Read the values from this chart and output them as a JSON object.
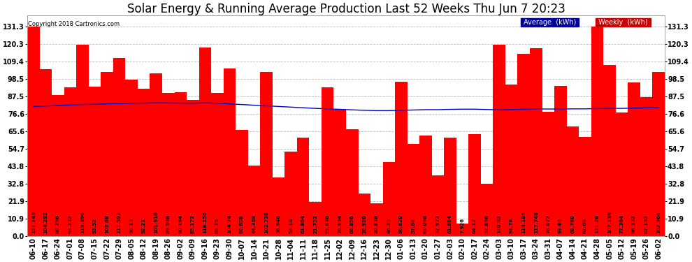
{
  "title": "Solar Energy & Running Average Production Last 52 Weeks Thu Jun 7 20:23",
  "copyright": "Copyright 2018 Cartronics.com",
  "categories": [
    "06-10",
    "06-17",
    "06-24",
    "07-01",
    "07-08",
    "07-15",
    "07-22",
    "07-29",
    "08-05",
    "08-12",
    "08-19",
    "08-26",
    "09-02",
    "09-09",
    "09-16",
    "09-23",
    "09-30",
    "10-07",
    "10-14",
    "10-21",
    "10-28",
    "11-04",
    "11-11",
    "11-18",
    "11-25",
    "12-02",
    "12-09",
    "12-16",
    "12-23",
    "12-30",
    "01-06",
    "01-13",
    "01-20",
    "01-27",
    "02-03",
    "02-10",
    "02-17",
    "02-24",
    "03-03",
    "03-10",
    "03-17",
    "03-24",
    "03-31",
    "04-07",
    "04-14",
    "04-21",
    "04-28",
    "05-05",
    "05-12",
    "05-19",
    "05-26",
    "06-02"
  ],
  "weekly_values": [
    131.148,
    104.392,
    88.256,
    93.232,
    119.896,
    93.52,
    102.68,
    111.592,
    98.13,
    92.21,
    101.916,
    89.508,
    90.164,
    85.172,
    118.156,
    89.75,
    104.74,
    66.658,
    44.308,
    102.738,
    36.946,
    53.14,
    61.864,
    21.732,
    93.036,
    78.994,
    66.856,
    26.936,
    20.838,
    46.23,
    96.638,
    57.64,
    63.096,
    37.972,
    61.694,
    7.926,
    64.12,
    32.856,
    120.02,
    94.78,
    114.184,
    117.748,
    78.072,
    93.84,
    68.768,
    62.08,
    131.28,
    107.136,
    77.364,
    96.332,
    87.192,
    102.968
  ],
  "avg_values": [
    81.2,
    81.5,
    81.8,
    82.1,
    82.4,
    82.6,
    82.8,
    83.0,
    83.2,
    83.3,
    83.5,
    83.4,
    83.3,
    83.2,
    83.5,
    83.2,
    82.8,
    82.4,
    82.0,
    81.6,
    81.2,
    80.8,
    80.4,
    80.0,
    79.7,
    79.4,
    79.1,
    78.8,
    78.6,
    78.6,
    78.8,
    79.0,
    79.2,
    79.2,
    79.4,
    79.5,
    79.5,
    79.3,
    79.1,
    79.3,
    79.5,
    79.7,
    79.6,
    79.6,
    79.7,
    79.7,
    79.9,
    80.0,
    80.0,
    80.2,
    80.3,
    80.5
  ],
  "bar_color": "#ff0000",
  "line_color": "#0000cc",
  "background_color": "#ffffff",
  "grid_color": "#bbbbbb",
  "ytick_values": [
    0.0,
    10.9,
    21.9,
    32.8,
    43.8,
    54.7,
    65.6,
    76.6,
    87.5,
    98.5,
    109.4,
    120.3,
    131.3
  ],
  "ytick_labels": [
    "0.0",
    "10.9",
    "21.9",
    "32.8",
    "43.8",
    "54.7",
    "65.6",
    "76.6",
    "87.5",
    "98.5",
    "109.4",
    "120.3",
    "131.3"
  ],
  "ylim": [
    0.0,
    138.0
  ],
  "title_fontsize": 12,
  "copyright_fontsize": 6,
  "tick_fontsize": 7,
  "value_label_fontsize": 5,
  "legend_avg_bg": "#000099",
  "legend_weekly_bg": "#cc0000",
  "legend_text_color": "#ffffff"
}
